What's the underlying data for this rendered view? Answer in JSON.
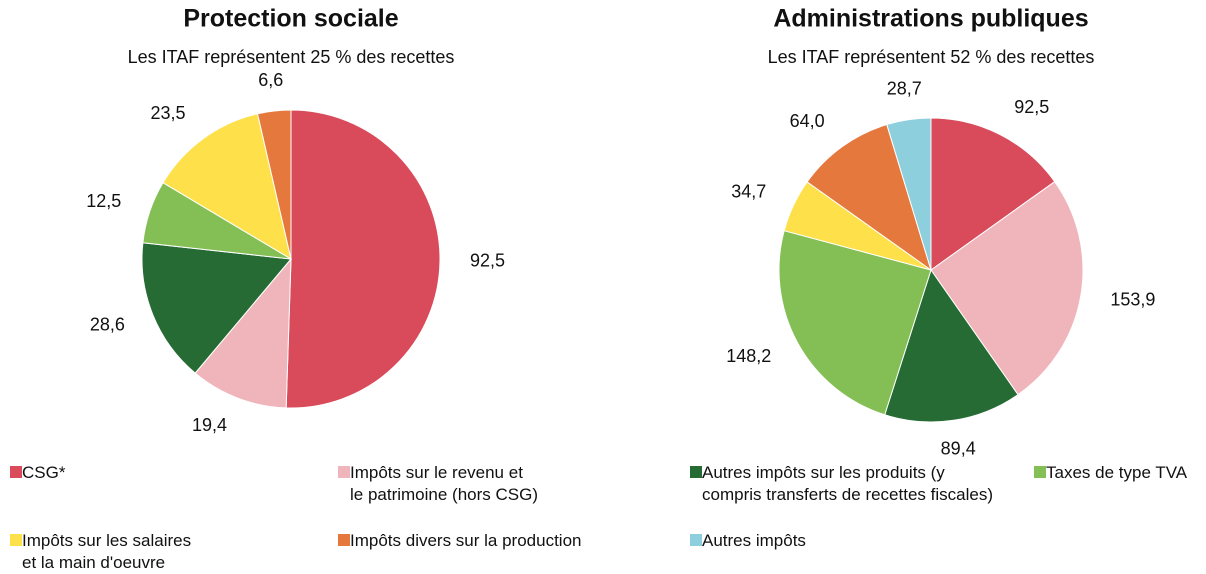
{
  "chart_data": [
    {
      "type": "pie",
      "title": "Protection sociale",
      "subtitle": "Les ITAF représentent  25 % des recettes",
      "values": [
        92.5,
        19.4,
        28.6,
        12.5,
        23.5,
        6.6
      ],
      "value_labels": [
        "92,5",
        "19,4",
        "28,6",
        "12,5",
        "23,5",
        "6,6"
      ]
    },
    {
      "type": "pie",
      "title": "Administrations publiques",
      "subtitle": "Les ITAF représentent 52 % des recettes",
      "values": [
        92.5,
        153.9,
        89.4,
        148.2,
        34.7,
        64.0,
        28.7
      ],
      "value_labels": [
        "92,5",
        "153,9",
        "89,4",
        "148,2",
        "34,7",
        "64,0",
        "28,7"
      ]
    }
  ],
  "legend": [
    {
      "name": "CSG*",
      "color": "#d94a5a"
    },
    {
      "name": "Impôts sur le revenu et\nle patrimoine (hors CSG)",
      "color": "#f0b5bb"
    },
    {
      "name": "Autres impôts sur les produits (y\ncompris transferts de recettes fiscales)",
      "color": "#256b33"
    },
    {
      "name": "Taxes de type TVA",
      "color": "#84bf55"
    },
    {
      "name": "Impôts sur les salaires\net la main d'oeuvre",
      "color": "#fde04a"
    },
    {
      "name": "Impôts divers sur la production",
      "color": "#e5783d"
    },
    {
      "name": "Autres impôts",
      "color": "#8dcfdc"
    }
  ]
}
